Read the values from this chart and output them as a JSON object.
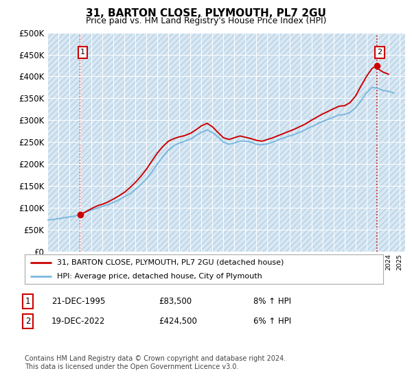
{
  "title": "31, BARTON CLOSE, PLYMOUTH, PL7 2GU",
  "subtitle": "Price paid vs. HM Land Registry's House Price Index (HPI)",
  "legend_line1": "31, BARTON CLOSE, PLYMOUTH, PL7 2GU (detached house)",
  "legend_line2": "HPI: Average price, detached house, City of Plymouth",
  "annotation1_label": "1",
  "annotation1_date": "21-DEC-1995",
  "annotation1_price": "£83,500",
  "annotation1_hpi": "8% ↑ HPI",
  "annotation2_label": "2",
  "annotation2_date": "19-DEC-2022",
  "annotation2_price": "£424,500",
  "annotation2_hpi": "6% ↑ HPI",
  "footer": "Contains HM Land Registry data © Crown copyright and database right 2024.\nThis data is licensed under the Open Government Licence v3.0.",
  "sale1_year": 1995.97,
  "sale1_value": 83500,
  "sale2_year": 2022.96,
  "sale2_value": 424500,
  "hpi_color": "#7ab8de",
  "price_color": "#cc0000",
  "dashed_color": "#cc0000",
  "background_color": "#ffffff",
  "plot_bg_color": "#d8e8f4",
  "grid_color": "#ffffff",
  "ylim": [
    0,
    500000
  ],
  "xlim_start": 1993,
  "xlim_end": 2025.5,
  "years_hpi": [
    1993,
    1993.5,
    1994,
    1994.5,
    1995,
    1995.5,
    1996,
    1996.5,
    1997,
    1997.5,
    1998,
    1998.5,
    1999,
    1999.5,
    2000,
    2000.5,
    2001,
    2001.5,
    2002,
    2002.5,
    2003,
    2003.5,
    2004,
    2004.5,
    2005,
    2005.5,
    2006,
    2006.5,
    2007,
    2007.5,
    2008,
    2008.5,
    2009,
    2009.5,
    2010,
    2010.5,
    2011,
    2011.5,
    2012,
    2012.5,
    2013,
    2013.5,
    2014,
    2014.5,
    2015,
    2015.5,
    2016,
    2016.5,
    2017,
    2017.5,
    2018,
    2018.5,
    2019,
    2019.5,
    2020,
    2020.5,
    2021,
    2021.5,
    2022,
    2022.5,
    2023,
    2023.5,
    2024,
    2024.5
  ],
  "values_hpi": [
    72000,
    73000,
    75000,
    77000,
    79000,
    81000,
    85000,
    90000,
    95000,
    99000,
    103000,
    107000,
    112000,
    118000,
    125000,
    132000,
    142000,
    153000,
    166000,
    182000,
    200000,
    217000,
    232000,
    242000,
    248000,
    252000,
    257000,
    265000,
    272000,
    278000,
    272000,
    262000,
    250000,
    245000,
    248000,
    252000,
    252000,
    250000,
    245000,
    244000,
    246000,
    250000,
    255000,
    260000,
    264000,
    268000,
    273000,
    279000,
    285000,
    291000,
    297000,
    302000,
    307000,
    312000,
    313000,
    318000,
    328000,
    345000,
    362000,
    375000,
    373000,
    368000,
    366000,
    362000
  ],
  "years_prop": [
    1995.97,
    1996.2,
    1996.5,
    1997,
    1997.5,
    1998,
    1998.5,
    1999,
    1999.5,
    2000,
    2000.5,
    2001,
    2001.5,
    2002,
    2002.5,
    2003,
    2003.5,
    2004,
    2004.5,
    2005,
    2005.5,
    2006,
    2006.5,
    2007,
    2007.5,
    2008,
    2008.5,
    2009,
    2009.5,
    2010,
    2010.5,
    2011,
    2011.5,
    2012,
    2012.5,
    2013,
    2013.5,
    2014,
    2014.5,
    2015,
    2015.5,
    2016,
    2016.5,
    2017,
    2017.5,
    2018,
    2018.5,
    2019,
    2019.5,
    2020,
    2020.5,
    2021,
    2021.5,
    2022,
    2022.5,
    2022.96,
    2023,
    2023.5,
    2024
  ],
  "values_prop": [
    83500,
    87000,
    91000,
    98000,
    104000,
    108000,
    113000,
    120000,
    127000,
    135000,
    146000,
    158000,
    172000,
    188000,
    207000,
    225000,
    240000,
    252000,
    258000,
    262000,
    265000,
    270000,
    278000,
    287000,
    293000,
    285000,
    272000,
    260000,
    256000,
    260000,
    264000,
    261000,
    258000,
    254000,
    252000,
    256000,
    260000,
    265000,
    270000,
    275000,
    280000,
    286000,
    292000,
    300000,
    307000,
    314000,
    320000,
    326000,
    332000,
    333000,
    340000,
    355000,
    378000,
    400000,
    418000,
    424500,
    418000,
    410000,
    405000
  ]
}
